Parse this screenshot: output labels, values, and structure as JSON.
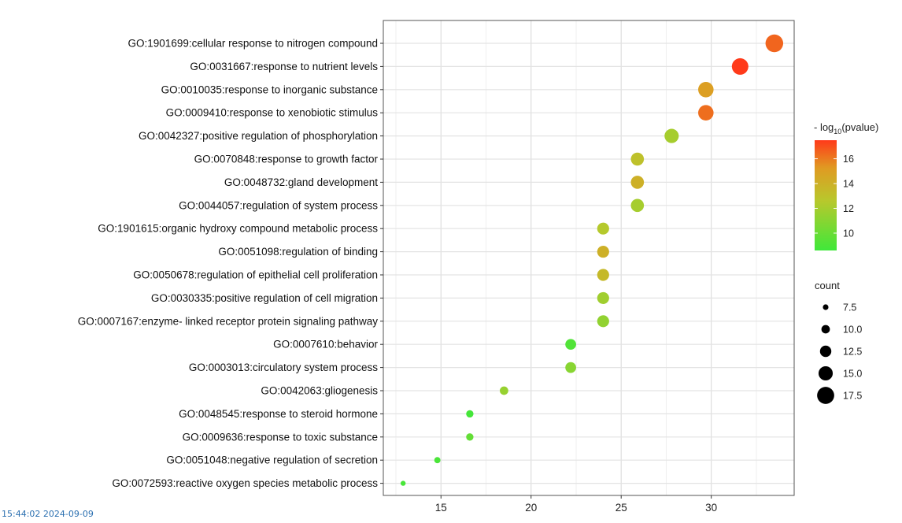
{
  "chart_data": {
    "type": "scatter",
    "title": "",
    "xlabel": "",
    "ylabel": "",
    "xlim": [
      11.8,
      34.6
    ],
    "x_ticks": [
      15,
      20,
      25,
      30
    ],
    "grid": true,
    "categories": [
      "GO:1901699:cellular response to nitrogen compound",
      "GO:0031667:response to nutrient levels",
      "GO:0010035:response to inorganic substance",
      "GO:0009410:response to xenobiotic stimulus",
      "GO:0042327:positive regulation of phosphorylation",
      "GO:0070848:response to growth factor",
      "GO:0048732:gland development",
      "GO:0044057:regulation of system process",
      "GO:1901615:organic hydroxy compound metabolic process",
      "GO:0051098:regulation of binding",
      "GO:0050678:regulation of epithelial cell proliferation",
      "GO:0030335:positive regulation of cell migration",
      "GO:0007167:enzyme- linked receptor protein signaling pathway",
      "GO:0007610:behavior",
      "GO:0003013:circulatory system process",
      "GO:0042063:gliogenesis",
      "GO:0048545:response to steroid hormone",
      "GO:0009636:response to toxic substance",
      "GO:0051048:negative regulation of secretion",
      "GO:0072593:reactive oxygen species metabolic process"
    ],
    "x": [
      33.5,
      31.6,
      29.7,
      29.7,
      27.8,
      25.9,
      25.9,
      25.9,
      24.0,
      24.0,
      24.0,
      24.0,
      24.0,
      22.2,
      22.2,
      18.5,
      16.6,
      16.6,
      14.8,
      12.9
    ],
    "count": [
      18,
      17,
      16,
      16,
      15,
      14,
      14,
      14,
      13,
      13,
      13,
      13,
      13,
      12,
      12,
      10,
      9,
      9,
      8,
      7
    ],
    "neg_log10_pvalue": [
      16.5,
      17.5,
      15.0,
      16.3,
      12.0,
      13.0,
      14.0,
      12.0,
      12.5,
      14.0,
      13.5,
      11.8,
      11.3,
      9.2,
      11.0,
      11.5,
      8.8,
      9.8,
      9.0,
      8.9
    ],
    "color_legend": {
      "title_prefix": "- log",
      "title_sub": "10",
      "title_suffix": "(pvalue)",
      "range": [
        8.6,
        17.5
      ],
      "ticks": [
        10,
        12,
        14,
        16
      ],
      "low_color": "#3fe83a",
      "mid_color": "#c8c42a",
      "high_color": "#ff3a1a"
    },
    "size_legend": {
      "title": "count",
      "values": [
        7.5,
        10.0,
        12.5,
        15.0,
        17.5
      ],
      "labels": [
        "7.5",
        "10.0",
        "12.5",
        "15.0",
        "17.5"
      ]
    }
  },
  "timestamp": "15:44:02 2024-09-09"
}
